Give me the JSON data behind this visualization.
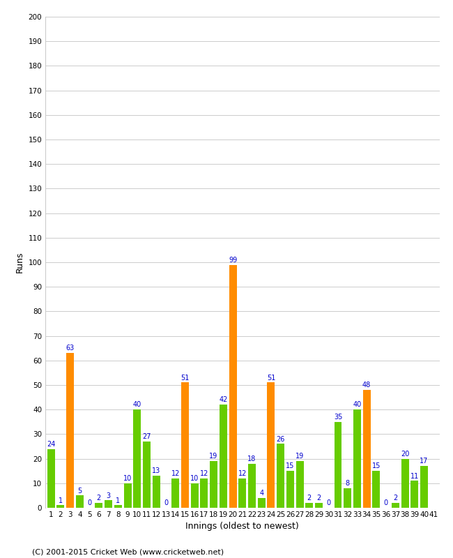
{
  "innings": [
    1,
    2,
    3,
    4,
    5,
    6,
    7,
    8,
    9,
    10,
    11,
    12,
    13,
    14,
    15,
    16,
    17,
    18,
    19,
    20,
    21,
    22,
    23,
    24,
    25,
    26,
    27,
    28,
    29,
    30,
    31,
    32,
    33,
    34,
    35,
    36,
    37,
    38,
    39,
    40,
    41
  ],
  "scores": [
    24,
    1,
    63,
    5,
    0,
    2,
    3,
    1,
    10,
    40,
    27,
    13,
    0,
    12,
    51,
    10,
    12,
    19,
    42,
    99,
    12,
    18,
    4,
    51,
    26,
    15,
    19,
    2,
    2,
    0,
    35,
    8,
    40,
    48,
    15,
    0,
    2,
    20,
    11,
    17,
    0
  ],
  "is_orange": [
    false,
    false,
    true,
    false,
    false,
    false,
    false,
    false,
    false,
    false,
    false,
    false,
    false,
    false,
    true,
    false,
    false,
    false,
    false,
    true,
    false,
    false,
    false,
    true,
    false,
    false,
    false,
    false,
    false,
    false,
    false,
    false,
    false,
    true,
    false,
    false,
    false,
    false,
    false,
    false,
    false
  ],
  "labels": [
    "1",
    "2",
    "3",
    "4",
    "5",
    "6",
    "7",
    "8",
    "9",
    "10",
    "11",
    "12",
    "13",
    "14",
    "15",
    "16",
    "17",
    "18",
    "19",
    "20",
    "21",
    "22",
    "23",
    "24",
    "25",
    "26",
    "27",
    "28",
    "29",
    "30",
    "31",
    "32",
    "33",
    "34",
    "35",
    "36",
    "37",
    "38",
    "39",
    "40",
    "41"
  ],
  "show_label": [
    true,
    true,
    true,
    true,
    true,
    true,
    true,
    true,
    true,
    true,
    true,
    true,
    true,
    true,
    true,
    true,
    true,
    true,
    true,
    true,
    true,
    true,
    true,
    true,
    true,
    true,
    true,
    true,
    true,
    true,
    true,
    true,
    true,
    true,
    true,
    true,
    true,
    true,
    true,
    true,
    false
  ],
  "green_color": "#66cc00",
  "orange_color": "#ff8c00",
  "ylabel": "Runs",
  "xlabel": "Innings (oldest to newest)",
  "ylim": [
    0,
    200
  ],
  "yticks": [
    0,
    10,
    20,
    30,
    40,
    50,
    60,
    70,
    80,
    90,
    100,
    110,
    120,
    130,
    140,
    150,
    160,
    170,
    180,
    190,
    200
  ],
  "footer": "(C) 2001-2015 Cricket Web (www.cricketweb.net)",
  "label_color": "#0000cc",
  "label_fontsize": 7,
  "tick_fontsize": 7.5
}
